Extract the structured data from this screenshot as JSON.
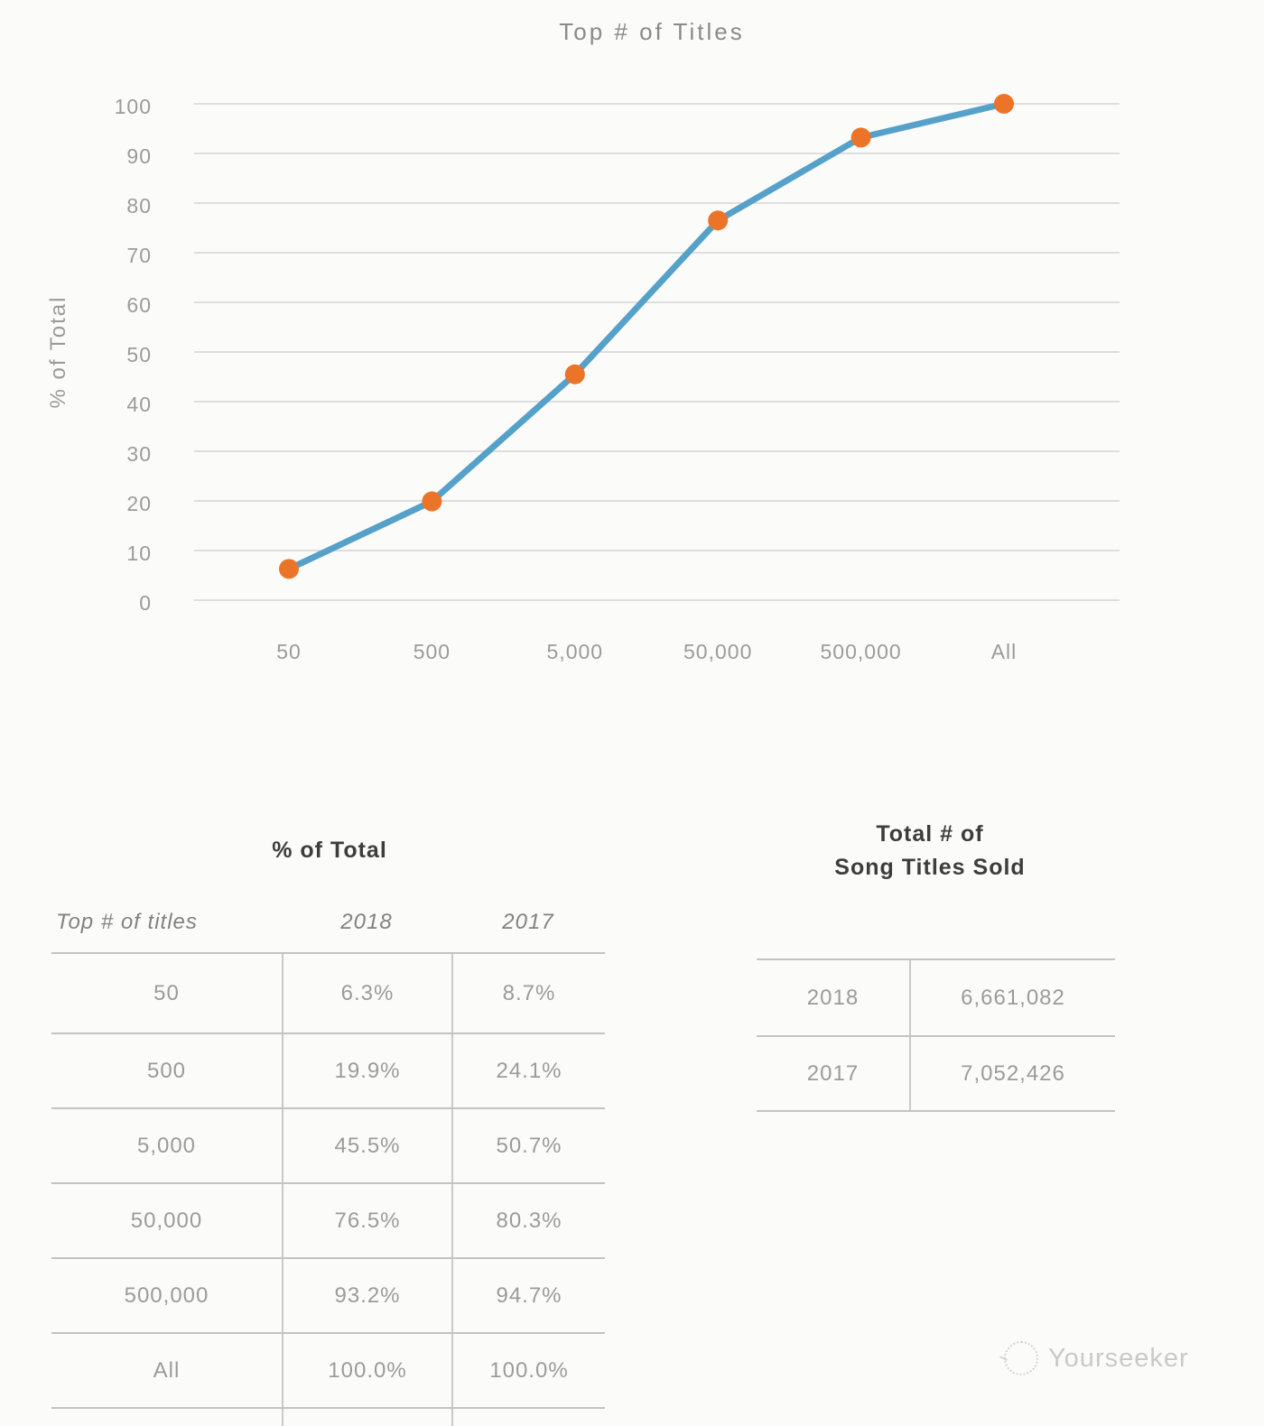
{
  "chart_data": {
    "type": "line",
    "title": "Top # of Titles",
    "categories": [
      "50",
      "500",
      "5,000",
      "50,000",
      "500,000",
      "All"
    ],
    "series": [
      {
        "name": "2018",
        "values": [
          6.3,
          19.9,
          45.5,
          76.5,
          93.2,
          100.0
        ]
      }
    ],
    "xlabel": "",
    "ylabel": "% of Total",
    "ylim": [
      0,
      100
    ],
    "ytick_step": 10,
    "grid": true,
    "legend": "none",
    "line_color": "#55a1c9",
    "marker_color": "#ec7428",
    "gridline_color": "#d4d4d3"
  },
  "tables": {
    "percent_of_total": {
      "title": "% of Total",
      "columns": [
        "Top # of titles",
        "2018",
        "2017"
      ],
      "rows": [
        [
          "50",
          "6.3%",
          "8.7%"
        ],
        [
          "500",
          "19.9%",
          "24.1%"
        ],
        [
          "5,000",
          "45.5%",
          "50.7%"
        ],
        [
          "50,000",
          "76.5%",
          "80.3%"
        ],
        [
          "500,000",
          "93.2%",
          "94.7%"
        ],
        [
          "All",
          "100.0%",
          "100.0%"
        ]
      ]
    },
    "titles_sold": {
      "title_line1": "Total # of",
      "title_line2": "Song Titles Sold",
      "rows": [
        [
          "2018",
          "6,661,082"
        ],
        [
          "2017",
          "7,052,426"
        ]
      ]
    }
  },
  "watermark": {
    "label": "Yourseeker"
  }
}
